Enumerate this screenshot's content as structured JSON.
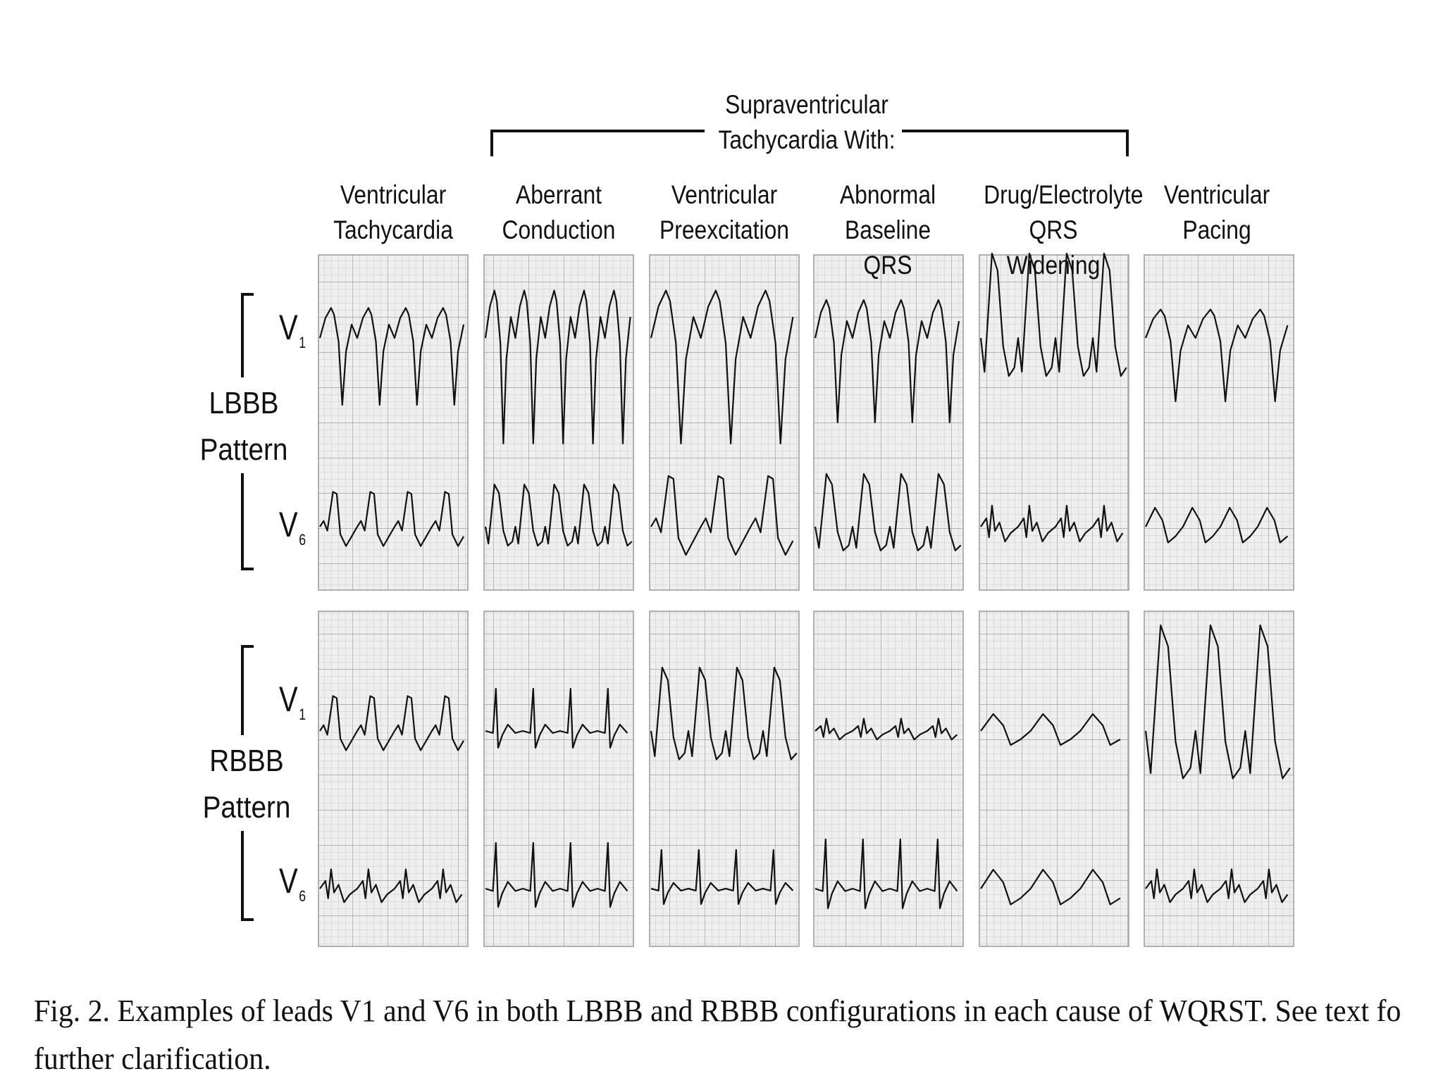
{
  "header": {
    "svt_line1": "Supraventricular",
    "svt_line2": "Tachycardia With:"
  },
  "columns": [
    {
      "line1": "Ventricular",
      "line2": "Tachycardia"
    },
    {
      "line1": "Aberrant",
      "line2": "Conduction"
    },
    {
      "line1": "Ventricular",
      "line2": "Preexcitation"
    },
    {
      "line1": "Abnormal",
      "line2": "Baseline QRS"
    },
    {
      "line1": "Drug/Electrolyte",
      "line2": "QRS Widening"
    },
    {
      "line1": "Ventricular",
      "line2": "Pacing"
    }
  ],
  "rows": [
    {
      "line1": "LBBB",
      "line2": "Pattern"
    },
    {
      "line1": "RBBB",
      "line2": "Pattern"
    }
  ],
  "leads": {
    "v1_main": "V",
    "v1_sub": "1",
    "v6_main": "V",
    "v6_sub": "6"
  },
  "caption": {
    "line1": "Fig. 2. Examples of leads V1 and V6 in both LBBB and RBBB configurations in each cause of WQRST. See text fo",
    "line2": "further clarification."
  },
  "colors": {
    "grid_minor": "#c6c6c6",
    "grid_major": "#999999",
    "panel_bg": "#eeeeee",
    "trace": "#111111"
  }
}
